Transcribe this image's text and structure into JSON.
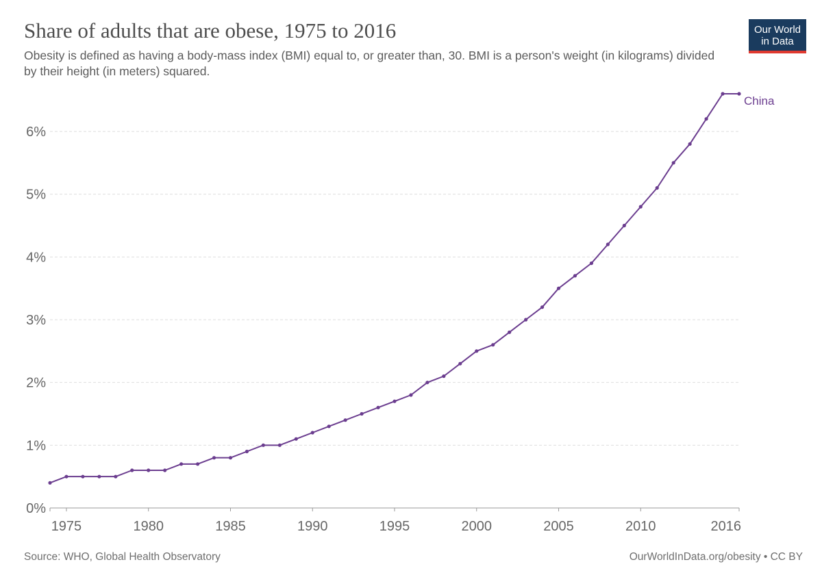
{
  "header": {
    "title": "Share of adults that are obese, 1975 to 2016",
    "subtitle": "Obesity is defined as having a body-mass index (BMI) equal to, or greater than, 30. BMI is a person's weight (in kilograms) divided by their height (in meters) squared."
  },
  "logo": {
    "line1": "Our World",
    "line2": "in Data"
  },
  "footer": {
    "source": "Source: WHO, Global Health Observatory",
    "license": "OurWorldInData.org/obesity • CC BY"
  },
  "colors": {
    "series": "#6b3d8f",
    "grid": "#dddddd",
    "text": "#4d4d4d"
  },
  "chart_data": {
    "type": "line",
    "title": "Share of adults that are obese, 1975 to 2016",
    "xlim": [
      1974,
      2016
    ],
    "ylim": [
      0,
      6.6
    ],
    "x_ticks": [
      1975,
      1980,
      1985,
      1990,
      1995,
      2000,
      2005,
      2010,
      2016
    ],
    "y_ticks": [
      0,
      1,
      2,
      3,
      4,
      5,
      6
    ],
    "y_tick_labels": [
      "0%",
      "1%",
      "2%",
      "3%",
      "4%",
      "5%",
      "6%"
    ],
    "grid": "horizontal dashed",
    "series": [
      {
        "name": "China",
        "color": "#6b3d8f",
        "x": [
          1974,
          1975,
          1976,
          1977,
          1978,
          1979,
          1980,
          1981,
          1982,
          1983,
          1984,
          1985,
          1986,
          1987,
          1988,
          1989,
          1990,
          1991,
          1992,
          1993,
          1994,
          1995,
          1996,
          1997,
          1998,
          1999,
          2000,
          2001,
          2002,
          2003,
          2004,
          2005,
          2006,
          2007,
          2008,
          2009,
          2010,
          2011,
          2012,
          2013,
          2014,
          2015,
          2016
        ],
        "values": [
          0.4,
          0.5,
          0.5,
          0.5,
          0.5,
          0.6,
          0.6,
          0.6,
          0.7,
          0.7,
          0.8,
          0.8,
          0.9,
          1.0,
          1.0,
          1.1,
          1.2,
          1.3,
          1.4,
          1.5,
          1.6,
          1.7,
          1.8,
          2.0,
          2.1,
          2.3,
          2.5,
          2.6,
          2.8,
          3.0,
          3.2,
          3.5,
          3.7,
          3.9,
          4.2,
          4.5,
          4.8,
          5.1,
          5.5,
          5.8,
          6.2,
          6.6,
          6.6
        ]
      }
    ]
  }
}
